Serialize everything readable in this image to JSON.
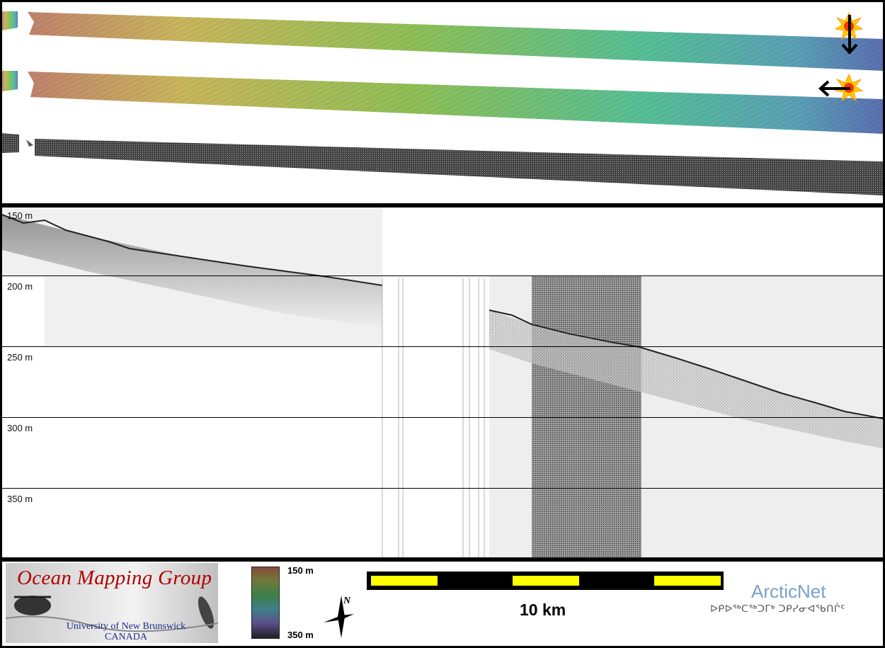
{
  "map": {
    "colorbar": {
      "top_label": "150 m",
      "bottom_label": "350 m",
      "colors": [
        "#c0826e",
        "#c9b65c",
        "#8fbf56",
        "#56bf96",
        "#5a86c0",
        "#a36bb0",
        "#2a2a2a"
      ]
    },
    "north_label": "N",
    "scale_bar": {
      "label": "10 km",
      "segments": 5,
      "fill_colors": [
        "#ffff00",
        "#000000"
      ]
    },
    "sun_icon_colors": [
      "#ffcc00",
      "#ff3300"
    ]
  },
  "profile": {
    "depth_labels": [
      "150 m",
      "200 m",
      "250 m",
      "300 m",
      "350 m"
    ]
  },
  "logos": {
    "ogm_title": "Ocean Mapping Group",
    "ogm_subtitle": "University of New Brunswick",
    "ogm_country": "CANADA",
    "arcticnet": "ArcticNet",
    "arcticnet_inuktitut": "ᐅᑭᐅᖅᑕᖅᑐᒥᒃ ᑐᑭᓯᓂᐊᖃᑎᒌᑦ"
  }
}
